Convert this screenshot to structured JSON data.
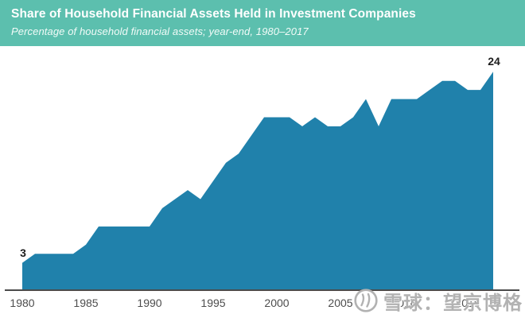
{
  "header": {
    "title": "Share of Household Financial Assets Held in Investment Companies",
    "subtitle": "Percentage of household financial assets; year-end, 1980–2017",
    "bg_color": "#5cbfae",
    "text_color": "#ffffff"
  },
  "chart_data": {
    "type": "area",
    "title": "Share of Household Financial Assets Held in Investment Companies",
    "subtitle": "Percentage of household financial assets; year-end, 1980–2017",
    "x": [
      1980,
      1981,
      1982,
      1983,
      1984,
      1985,
      1986,
      1987,
      1988,
      1989,
      1990,
      1991,
      1992,
      1993,
      1994,
      1995,
      1996,
      1997,
      1998,
      1999,
      2000,
      2001,
      2002,
      2003,
      2004,
      2005,
      2006,
      2007,
      2008,
      2009,
      2010,
      2011,
      2012,
      2013,
      2014,
      2015,
      2016,
      2017
    ],
    "values": [
      3,
      4,
      4,
      4,
      4,
      5,
      7,
      7,
      7,
      7,
      7,
      9,
      10,
      11,
      10,
      12,
      14,
      15,
      17,
      19,
      19,
      19,
      18,
      19,
      18,
      18,
      19,
      21,
      18,
      21,
      21,
      21,
      22,
      23,
      23,
      22,
      22,
      24
    ],
    "x_tick_labels": [
      "1980",
      "1985",
      "1990",
      "1995",
      "2000",
      "2005",
      "2010",
      "2015"
    ],
    "x_ticks": [
      1980,
      1985,
      1990,
      1995,
      2000,
      2005,
      2010,
      2015
    ],
    "xlabel": "",
    "ylabel": "",
    "ylim": [
      0,
      26
    ],
    "grid": false,
    "legend": "none",
    "annotations": [
      {
        "year": 1980,
        "value": 3,
        "label": "3"
      },
      {
        "year": 2017,
        "value": 24,
        "label": "24"
      }
    ],
    "area_color": "#2081ab",
    "axis_line_color": "#4b4b4b",
    "tick_color": "#4d4d4d"
  },
  "watermark": {
    "text": "雪球：望京博格",
    "logo": "xueqiu-snowball-logo",
    "color": "#b2b2b2"
  }
}
